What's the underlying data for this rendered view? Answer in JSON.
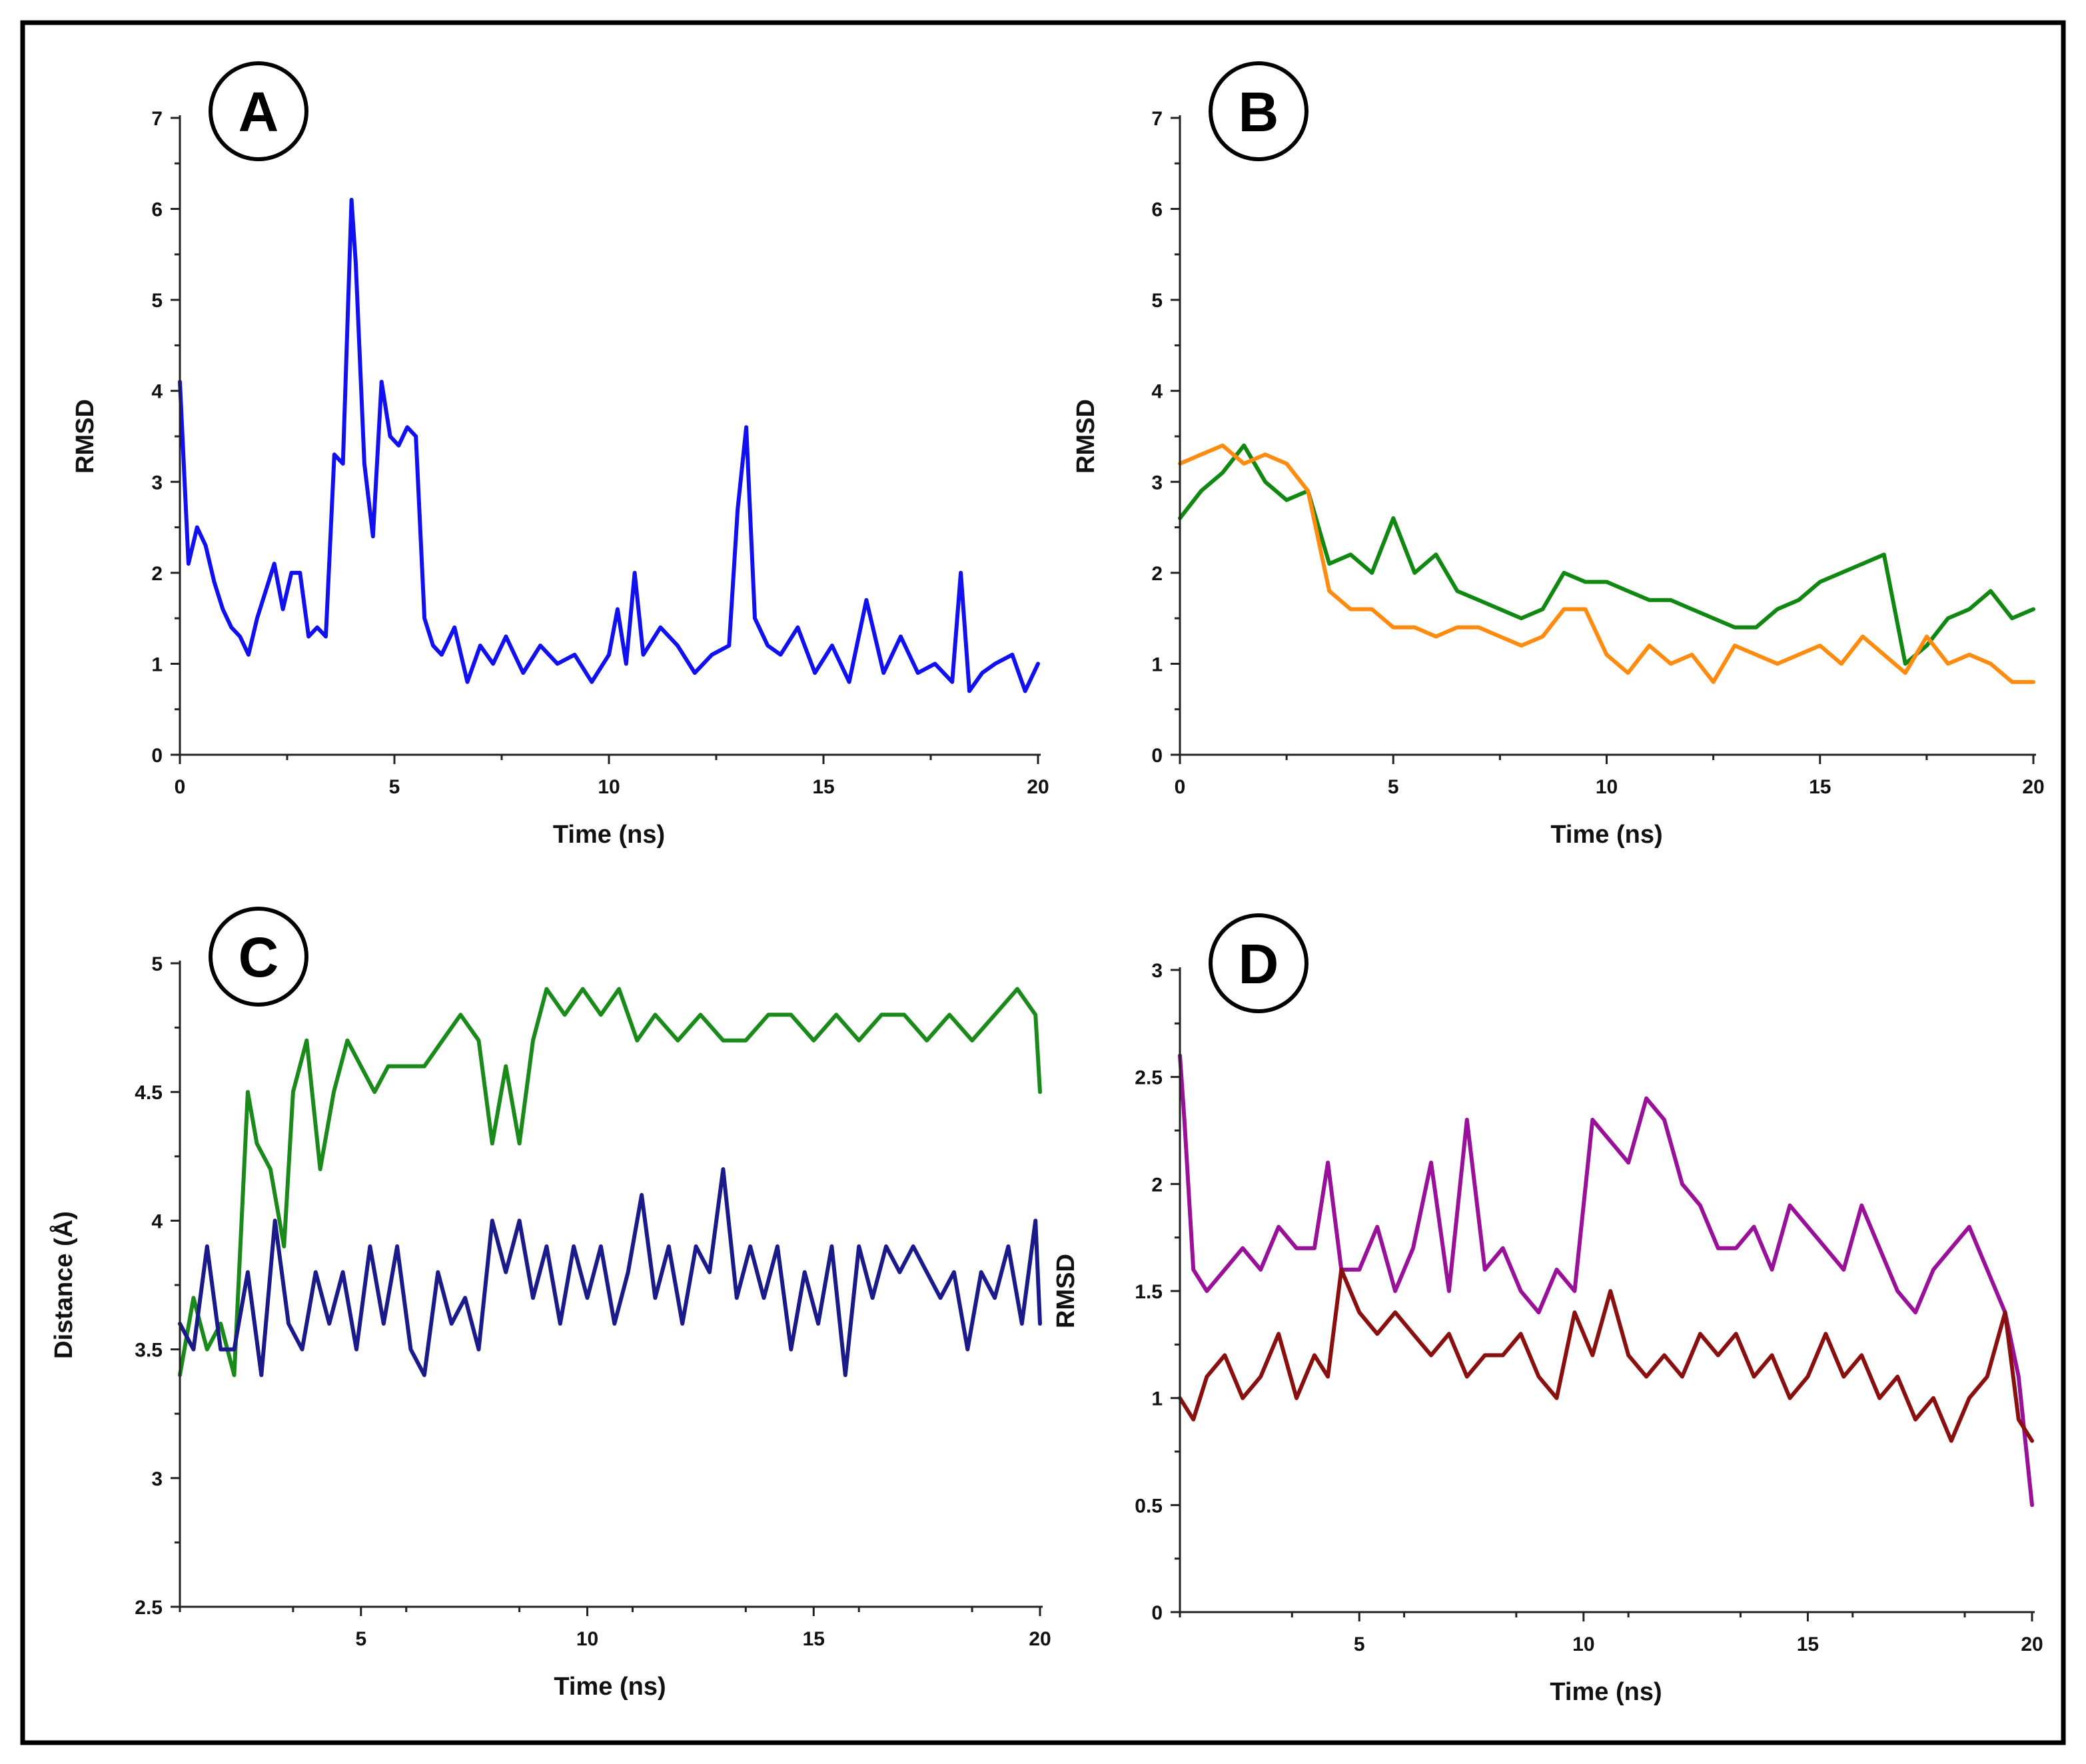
{
  "figure": {
    "border_color": "#000000"
  },
  "chart_data": [
    {
      "panel": "A",
      "type": "line",
      "xlabel": "Time (ns)",
      "ylabel": "RMSD",
      "xlim": [
        0,
        20
      ],
      "ylim": [
        0,
        7
      ],
      "xticks": [
        0,
        5,
        10,
        15,
        20
      ],
      "xtick_labels": [
        "0",
        "5",
        "10",
        "15",
        "20"
      ],
      "yticks": [
        0,
        1,
        2,
        3,
        4,
        5,
        6,
        7
      ],
      "ytick_labels": [
        "0",
        "1",
        "2",
        "3",
        "4",
        "5",
        "6",
        "7"
      ],
      "series": [
        {
          "name": "series-1",
          "color": "#1010f0",
          "x": [
            0,
            0.2,
            0.4,
            0.6,
            0.8,
            1,
            1.2,
            1.4,
            1.6,
            1.8,
            2,
            2.2,
            2.4,
            2.6,
            2.8,
            3,
            3.2,
            3.4,
            3.6,
            3.8,
            4,
            4.1,
            4.3,
            4.5,
            4.7,
            4.9,
            5.1,
            5.3,
            5.5,
            5.7,
            5.9,
            6.1,
            6.4,
            6.7,
            7,
            7.3,
            7.6,
            8,
            8.4,
            8.8,
            9.2,
            9.6,
            10,
            10.2,
            10.4,
            10.6,
            10.8,
            11.2,
            11.6,
            12,
            12.4,
            12.8,
            13,
            13.2,
            13.4,
            13.7,
            14,
            14.4,
            14.8,
            15.2,
            15.6,
            16,
            16.4,
            16.8,
            17.2,
            17.6,
            18,
            18.2,
            18.4,
            18.7,
            19,
            19.4,
            19.7,
            20
          ],
          "values": [
            4.1,
            2.1,
            2.5,
            2.3,
            1.9,
            1.6,
            1.4,
            1.3,
            1.1,
            1.5,
            1.8,
            2.1,
            1.6,
            2.0,
            2.0,
            1.3,
            1.4,
            1.3,
            3.3,
            3.2,
            6.1,
            5.4,
            3.2,
            2.4,
            4.1,
            3.5,
            3.4,
            3.6,
            3.5,
            1.5,
            1.2,
            1.1,
            1.4,
            0.8,
            1.2,
            1.0,
            1.3,
            0.9,
            1.2,
            1.0,
            1.1,
            0.8,
            1.1,
            1.6,
            1.0,
            2.0,
            1.1,
            1.4,
            1.2,
            0.9,
            1.1,
            1.2,
            2.7,
            3.6,
            1.5,
            1.2,
            1.1,
            1.4,
            0.9,
            1.2,
            0.8,
            1.7,
            0.9,
            1.3,
            0.9,
            1.0,
            0.8,
            2.0,
            0.7,
            0.9,
            1.0,
            1.1,
            0.7,
            1.0
          ]
        }
      ]
    },
    {
      "panel": "B",
      "type": "line",
      "xlabel": "Time (ns)",
      "ylabel": "RMSD",
      "xlim": [
        0,
        20
      ],
      "ylim": [
        0,
        7
      ],
      "xticks": [
        0,
        5,
        10,
        15,
        20
      ],
      "xtick_labels": [
        "0",
        "5",
        "10",
        "15",
        "20"
      ],
      "yticks": [
        0,
        1,
        2,
        3,
        4,
        5,
        6,
        7
      ],
      "ytick_labels": [
        "0",
        "1",
        "2",
        "3",
        "4",
        "5",
        "6",
        "7"
      ],
      "series": [
        {
          "name": "series-green",
          "color": "#118811",
          "x": [
            0,
            0.5,
            1,
            1.5,
            2,
            2.5,
            3,
            3.5,
            4,
            4.5,
            5,
            5.5,
            6,
            6.5,
            7,
            7.5,
            8,
            8.5,
            9,
            9.5,
            10,
            10.5,
            11,
            11.5,
            12,
            12.5,
            13,
            13.5,
            14,
            14.5,
            15,
            15.5,
            16,
            16.5,
            17,
            17.5,
            18,
            18.5,
            19,
            19.5,
            20
          ],
          "values": [
            2.6,
            2.9,
            3.1,
            3.4,
            3.0,
            2.8,
            2.9,
            2.1,
            2.2,
            2.0,
            2.6,
            2.0,
            2.2,
            1.8,
            1.7,
            1.6,
            1.5,
            1.6,
            2.0,
            1.9,
            1.9,
            1.8,
            1.7,
            1.7,
            1.6,
            1.5,
            1.4,
            1.4,
            1.6,
            1.7,
            1.9,
            2.0,
            2.1,
            2.2,
            1.0,
            1.2,
            1.5,
            1.6,
            1.8,
            1.5,
            1.6
          ]
        },
        {
          "name": "series-orange",
          "color": "#ff8c10",
          "x": [
            0,
            0.5,
            1,
            1.5,
            2,
            2.5,
            3,
            3.5,
            4,
            4.5,
            5,
            5.5,
            6,
            6.5,
            7,
            7.5,
            8,
            8.5,
            9,
            9.5,
            10,
            10.5,
            11,
            11.5,
            12,
            12.5,
            13,
            13.5,
            14,
            14.5,
            15,
            15.5,
            16,
            16.5,
            17,
            17.5,
            18,
            18.5,
            19,
            19.5,
            20
          ],
          "values": [
            3.2,
            3.3,
            3.4,
            3.2,
            3.3,
            3.2,
            2.9,
            1.8,
            1.6,
            1.6,
            1.4,
            1.4,
            1.3,
            1.4,
            1.4,
            1.3,
            1.2,
            1.3,
            1.6,
            1.6,
            1.1,
            0.9,
            1.2,
            1.0,
            1.1,
            0.8,
            1.2,
            1.1,
            1.0,
            1.1,
            1.2,
            1.0,
            1.3,
            1.1,
            0.9,
            1.3,
            1.0,
            1.1,
            1.0,
            0.8,
            0.8
          ]
        }
      ]
    },
    {
      "panel": "C",
      "type": "line",
      "xlabel": "Time (ns)",
      "ylabel": "Distance (Å)",
      "xlim": [
        1,
        20
      ],
      "ylim": [
        2.5,
        5
      ],
      "xticks": [
        5,
        10,
        15,
        20
      ],
      "xtick_labels": [
        "5",
        "10",
        "15",
        "20"
      ],
      "yticks": [
        2.5,
        3,
        3.5,
        4,
        4.5,
        5
      ],
      "ytick_labels": [
        "2.5",
        "3",
        "3.5",
        "4",
        "4.5",
        "5"
      ],
      "series": [
        {
          "name": "series-green",
          "color": "#1a8a1a",
          "x": [
            1,
            1.3,
            1.6,
            1.9,
            2.2,
            2.5,
            2.7,
            3,
            3.3,
            3.5,
            3.8,
            4.1,
            4.4,
            4.7,
            5,
            5.3,
            5.6,
            6,
            6.4,
            6.8,
            7.2,
            7.6,
            7.9,
            8.2,
            8.5,
            8.8,
            9.1,
            9.5,
            9.9,
            10.3,
            10.7,
            11.1,
            11.5,
            12,
            12.5,
            13,
            13.5,
            14,
            14.5,
            15,
            15.5,
            16,
            16.5,
            17,
            17.5,
            18,
            18.5,
            19,
            19.5,
            19.9,
            20
          ],
          "values": [
            3.4,
            3.7,
            3.5,
            3.6,
            3.4,
            4.5,
            4.3,
            4.2,
            3.9,
            4.5,
            4.7,
            4.2,
            4.5,
            4.7,
            4.6,
            4.5,
            4.6,
            4.6,
            4.6,
            4.7,
            4.8,
            4.7,
            4.3,
            4.6,
            4.3,
            4.7,
            4.9,
            4.8,
            4.9,
            4.8,
            4.9,
            4.7,
            4.8,
            4.7,
            4.8,
            4.7,
            4.7,
            4.8,
            4.8,
            4.7,
            4.8,
            4.7,
            4.8,
            4.8,
            4.7,
            4.8,
            4.7,
            4.8,
            4.9,
            4.8,
            4.5
          ]
        },
        {
          "name": "series-navy",
          "color": "#1a1a8a",
          "x": [
            1,
            1.3,
            1.6,
            1.9,
            2.2,
            2.5,
            2.8,
            3.1,
            3.4,
            3.7,
            4,
            4.3,
            4.6,
            4.9,
            5.2,
            5.5,
            5.8,
            6.1,
            6.4,
            6.7,
            7,
            7.3,
            7.6,
            7.9,
            8.2,
            8.5,
            8.8,
            9.1,
            9.4,
            9.7,
            10,
            10.3,
            10.6,
            10.9,
            11.2,
            11.5,
            11.8,
            12.1,
            12.4,
            12.7,
            13,
            13.3,
            13.6,
            13.9,
            14.2,
            14.5,
            14.8,
            15.1,
            15.4,
            15.7,
            16,
            16.3,
            16.6,
            16.9,
            17.2,
            17.5,
            17.8,
            18.1,
            18.4,
            18.7,
            19,
            19.3,
            19.6,
            19.9,
            20
          ],
          "values": [
            3.6,
            3.5,
            3.9,
            3.5,
            3.5,
            3.8,
            3.4,
            4.0,
            3.6,
            3.5,
            3.8,
            3.6,
            3.8,
            3.5,
            3.9,
            3.6,
            3.9,
            3.5,
            3.4,
            3.8,
            3.6,
            3.7,
            3.5,
            4.0,
            3.8,
            4.0,
            3.7,
            3.9,
            3.6,
            3.9,
            3.7,
            3.9,
            3.6,
            3.8,
            4.1,
            3.7,
            3.9,
            3.6,
            3.9,
            3.8,
            4.2,
            3.7,
            3.9,
            3.7,
            3.9,
            3.5,
            3.8,
            3.6,
            3.9,
            3.4,
            3.9,
            3.7,
            3.9,
            3.8,
            3.9,
            3.8,
            3.7,
            3.8,
            3.5,
            3.8,
            3.7,
            3.9,
            3.6,
            4.0,
            3.6
          ]
        }
      ]
    },
    {
      "panel": "D",
      "type": "line",
      "xlabel": "Time (ns)",
      "ylabel": "RMSD",
      "xlim": [
        1,
        20
      ],
      "ylim": [
        0,
        3
      ],
      "xticks": [
        5,
        10,
        15,
        20
      ],
      "xtick_labels": [
        "5",
        "10",
        "15",
        "20"
      ],
      "yticks": [
        0,
        0.5,
        1,
        1.5,
        2,
        2.5,
        3
      ],
      "ytick_labels": [
        "0",
        "0.5",
        "1",
        "1.5",
        "2",
        "2.5",
        "3"
      ],
      "series": [
        {
          "name": "series-purple",
          "color": "#991199",
          "x": [
            1,
            1.1,
            1.3,
            1.6,
            2,
            2.4,
            2.8,
            3.2,
            3.6,
            4,
            4.3,
            4.6,
            5,
            5.4,
            5.8,
            6.2,
            6.6,
            7,
            7.4,
            7.8,
            8.2,
            8.6,
            9,
            9.4,
            9.8,
            10.2,
            10.6,
            11,
            11.4,
            11.8,
            12.2,
            12.6,
            13,
            13.4,
            13.8,
            14.2,
            14.6,
            15,
            15.4,
            15.8,
            16.2,
            16.6,
            17,
            17.4,
            17.8,
            18.2,
            18.6,
            19,
            19.4,
            19.7,
            20
          ],
          "values": [
            2.6,
            2.3,
            1.6,
            1.5,
            1.6,
            1.7,
            1.6,
            1.8,
            1.7,
            1.7,
            2.1,
            1.6,
            1.6,
            1.8,
            1.5,
            1.7,
            2.1,
            1.5,
            2.3,
            1.6,
            1.7,
            1.5,
            1.4,
            1.6,
            1.5,
            2.3,
            2.2,
            2.1,
            2.4,
            2.3,
            2.0,
            1.9,
            1.7,
            1.7,
            1.8,
            1.6,
            1.9,
            1.8,
            1.7,
            1.6,
            1.9,
            1.7,
            1.5,
            1.4,
            1.6,
            1.7,
            1.8,
            1.6,
            1.4,
            1.1,
            0.5
          ]
        },
        {
          "name": "series-maroon",
          "color": "#8a1010",
          "x": [
            1,
            1.3,
            1.6,
            2,
            2.4,
            2.8,
            3.2,
            3.6,
            4,
            4.3,
            4.6,
            5,
            5.4,
            5.8,
            6.2,
            6.6,
            7,
            7.4,
            7.8,
            8.2,
            8.6,
            9,
            9.4,
            9.8,
            10.2,
            10.6,
            11,
            11.4,
            11.8,
            12.2,
            12.6,
            13,
            13.4,
            13.8,
            14.2,
            14.6,
            15,
            15.4,
            15.8,
            16.2,
            16.6,
            17,
            17.4,
            17.8,
            18.2,
            18.6,
            19,
            19.4,
            19.7,
            20
          ],
          "values": [
            1.0,
            0.9,
            1.1,
            1.2,
            1.0,
            1.1,
            1.3,
            1.0,
            1.2,
            1.1,
            1.6,
            1.4,
            1.3,
            1.4,
            1.3,
            1.2,
            1.3,
            1.1,
            1.2,
            1.2,
            1.3,
            1.1,
            1.0,
            1.4,
            1.2,
            1.5,
            1.2,
            1.1,
            1.2,
            1.1,
            1.3,
            1.2,
            1.3,
            1.1,
            1.2,
            1.0,
            1.1,
            1.3,
            1.1,
            1.2,
            1.0,
            1.1,
            0.9,
            1.0,
            0.8,
            1.0,
            1.1,
            1.4,
            0.9,
            0.8
          ]
        }
      ]
    }
  ]
}
